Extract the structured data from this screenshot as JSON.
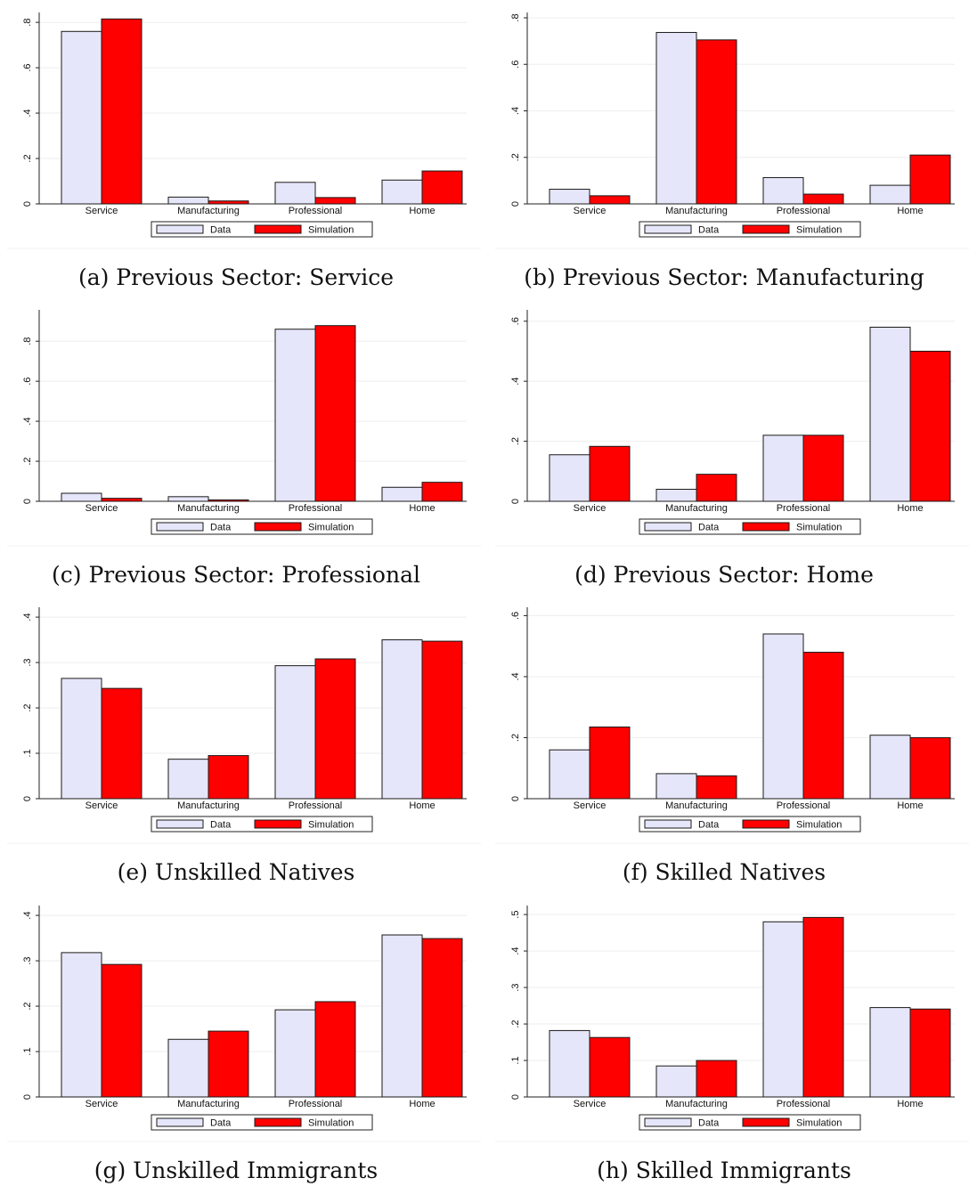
{
  "legend": {
    "data_label": "Data",
    "simulation_label": "Simulation"
  },
  "colors": {
    "data_fill": "#e6e6fa",
    "simulation_fill": "#ff0000",
    "bar_stroke": "#1a1a1a",
    "grid": "#eeeeee",
    "axis": "#222222"
  },
  "chart_data": [
    {
      "type": "bar",
      "caption": "(a) Previous Sector: Service",
      "categories": [
        "Service",
        "Manufacturing",
        "Professional",
        "Home"
      ],
      "series": [
        {
          "name": "Data",
          "values": [
            0.76,
            0.03,
            0.095,
            0.105
          ]
        },
        {
          "name": "Simulation",
          "values": [
            0.815,
            0.013,
            0.028,
            0.145
          ]
        }
      ],
      "yticks": [
        0,
        0.2,
        0.4,
        0.6,
        0.8
      ],
      "ytick_labels": [
        "0",
        ".2",
        ".4",
        ".6",
        ".8"
      ],
      "ylim": [
        0,
        0.82
      ],
      "grid": true,
      "legend_position": "bottom"
    },
    {
      "type": "bar",
      "caption": "(b) Previous Sector: Manufacturing",
      "categories": [
        "Service",
        "Manufacturing",
        "Professional",
        "Home"
      ],
      "series": [
        {
          "name": "Data",
          "values": [
            0.063,
            0.737,
            0.113,
            0.08
          ]
        },
        {
          "name": "Simulation",
          "values": [
            0.035,
            0.705,
            0.042,
            0.21
          ]
        }
      ],
      "yticks": [
        0,
        0.2,
        0.4,
        0.6,
        0.8
      ],
      "ytick_labels": [
        "0",
        ".2",
        ".4",
        ".6",
        ".8"
      ],
      "ylim": [
        0,
        0.8
      ],
      "grid": true,
      "legend_position": "bottom"
    },
    {
      "type": "bar",
      "caption": "(c) Previous Sector: Professional",
      "categories": [
        "Service",
        "Manufacturing",
        "Professional",
        "Home"
      ],
      "series": [
        {
          "name": "Data",
          "values": [
            0.04,
            0.023,
            0.86,
            0.07
          ]
        },
        {
          "name": "Simulation",
          "values": [
            0.015,
            0.007,
            0.878,
            0.095
          ]
        }
      ],
      "yticks": [
        0,
        0.2,
        0.4,
        0.6,
        0.8
      ],
      "ytick_labels": [
        "0",
        ".2",
        ".4",
        ".6",
        ".8"
      ],
      "ylim": [
        0,
        0.93
      ],
      "grid": true,
      "legend_position": "bottom"
    },
    {
      "type": "bar",
      "caption": "(d) Previous Sector: Home",
      "categories": [
        "Service",
        "Manufacturing",
        "Professional",
        "Home"
      ],
      "series": [
        {
          "name": "Data",
          "values": [
            0.155,
            0.04,
            0.22,
            0.58
          ]
        },
        {
          "name": "Simulation",
          "values": [
            0.183,
            0.09,
            0.22,
            0.5
          ]
        }
      ],
      "yticks": [
        0,
        0.2,
        0.4,
        0.6
      ],
      "ytick_labels": [
        "0",
        ".2",
        ".4",
        ".6"
      ],
      "ylim": [
        0,
        0.62
      ],
      "grid": true,
      "legend_position": "bottom"
    },
    {
      "type": "bar",
      "caption": "(e) Unskilled Natives",
      "categories": [
        "Service",
        "Manufacturing",
        "Professional",
        "Home"
      ],
      "series": [
        {
          "name": "Data",
          "values": [
            0.265,
            0.087,
            0.293,
            0.35
          ]
        },
        {
          "name": "Simulation",
          "values": [
            0.243,
            0.095,
            0.308,
            0.347
          ]
        }
      ],
      "yticks": [
        0,
        0.1,
        0.2,
        0.3,
        0.4
      ],
      "ytick_labels": [
        "0",
        ".1",
        ".2",
        ".3",
        ".4"
      ],
      "ylim": [
        0,
        0.41
      ],
      "grid": true,
      "legend_position": "bottom"
    },
    {
      "type": "bar",
      "caption": "(f) Skilled Natives",
      "categories": [
        "Service",
        "Manufacturing",
        "Professional",
        "Home"
      ],
      "series": [
        {
          "name": "Data",
          "values": [
            0.16,
            0.082,
            0.54,
            0.208
          ]
        },
        {
          "name": "Simulation",
          "values": [
            0.235,
            0.075,
            0.48,
            0.2
          ]
        }
      ],
      "yticks": [
        0,
        0.2,
        0.4,
        0.6
      ],
      "ytick_labels": [
        "0",
        ".2",
        ".4",
        ".6"
      ],
      "ylim": [
        0,
        0.61
      ],
      "grid": true,
      "legend_position": "bottom"
    },
    {
      "type": "bar",
      "caption": "(g) Unskilled Immigrants",
      "categories": [
        "Service",
        "Manufacturing",
        "Professional",
        "Home"
      ],
      "series": [
        {
          "name": "Data",
          "values": [
            0.318,
            0.127,
            0.192,
            0.357
          ]
        },
        {
          "name": "Simulation",
          "values": [
            0.292,
            0.145,
            0.21,
            0.349
          ]
        }
      ],
      "yticks": [
        0,
        0.1,
        0.2,
        0.3,
        0.4
      ],
      "ytick_labels": [
        "0",
        ".1",
        ".2",
        ".3",
        ".4"
      ],
      "ylim": [
        0,
        0.41
      ],
      "grid": true,
      "legend_position": "bottom"
    },
    {
      "type": "bar",
      "caption": "(h) Skilled Immigrants",
      "categories": [
        "Service",
        "Manufacturing",
        "Professional",
        "Home"
      ],
      "series": [
        {
          "name": "Data",
          "values": [
            0.182,
            0.085,
            0.48,
            0.245
          ]
        },
        {
          "name": "Simulation",
          "values": [
            0.163,
            0.1,
            0.492,
            0.241
          ]
        }
      ],
      "yticks": [
        0,
        0.1,
        0.2,
        0.3,
        0.4,
        0.5
      ],
      "ytick_labels": [
        "0",
        ".1",
        ".2",
        ".3",
        ".4",
        ".5"
      ],
      "ylim": [
        0,
        0.51
      ],
      "grid": true,
      "legend_position": "bottom"
    }
  ]
}
